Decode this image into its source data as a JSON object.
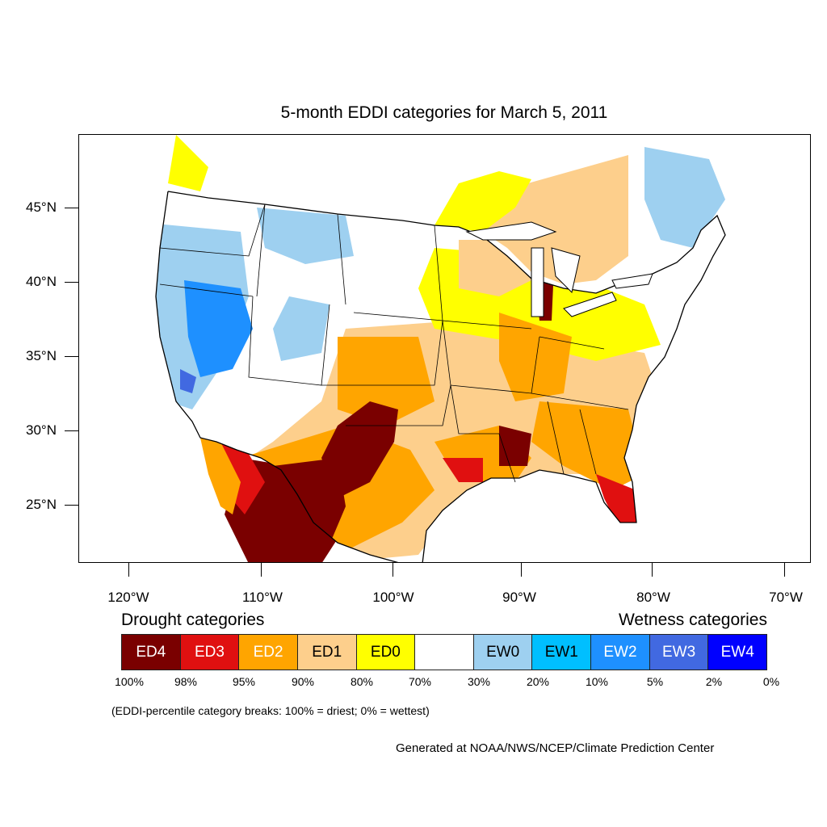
{
  "title": "5-month EDDI categories for March 5, 2011",
  "map": {
    "region": "Contiguous United States",
    "lat_labels": [
      "45°N",
      "40°N",
      "35°N",
      "30°N",
      "25°N"
    ],
    "lon_labels": [
      "120°W",
      "110°W",
      "100°W",
      "90°W",
      "80°W",
      "70°W"
    ]
  },
  "legend": {
    "drought_label": "Drought categories",
    "wetness_label": "Wetness categories",
    "categories": [
      {
        "label": "ED4",
        "color": "#7a0000",
        "text_color": "#ffffff"
      },
      {
        "label": "ED3",
        "color": "#e01010",
        "text_color": "#ffffff"
      },
      {
        "label": "ED2",
        "color": "#ffa500",
        "text_color": "#ffffff"
      },
      {
        "label": "ED1",
        "color": "#fdcf8c",
        "text_color": "#000000"
      },
      {
        "label": "ED0",
        "color": "#ffff00",
        "text_color": "#000000"
      },
      {
        "label": "",
        "color": "#ffffff",
        "text_color": "#000000"
      },
      {
        "label": "EW0",
        "color": "#9ed0f0",
        "text_color": "#000000"
      },
      {
        "label": "EW1",
        "color": "#00bfff",
        "text_color": "#000000"
      },
      {
        "label": "EW2",
        "color": "#1e90ff",
        "text_color": "#ffffff"
      },
      {
        "label": "EW3",
        "color": "#4169e1",
        "text_color": "#ffffff"
      },
      {
        "label": "EW4",
        "color": "#0000ff",
        "text_color": "#ffffff"
      }
    ],
    "percentiles": [
      "100%",
      "98%",
      "95%",
      "90%",
      "80%",
      "70%",
      "30%",
      "20%",
      "10%",
      "5%",
      "2%",
      "0%"
    ]
  },
  "note": "(EDDI-percentile category breaks: 100% = driest; 0% = wettest)",
  "credit": "Generated at NOAA/NWS/NCEP/Climate Prediction Center"
}
